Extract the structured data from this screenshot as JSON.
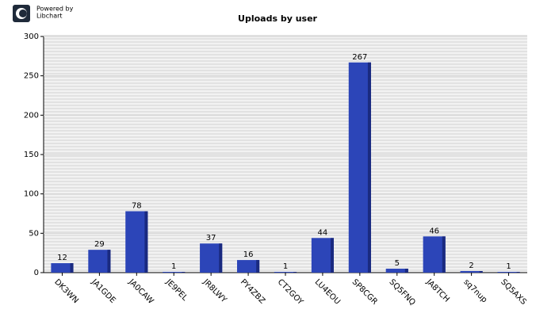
{
  "chart_data": {
    "type": "bar",
    "title": "Uploads by user",
    "credit": [
      "Powered by",
      "Libchart"
    ],
    "categories": [
      "DK3WN",
      "JA1GDE",
      "JA0CAW",
      "JE9PEL",
      "JR8LWY",
      "PY4ZBZ",
      "CT2GOY",
      "LU4EOU",
      "SP8CGR",
      "SQ5FNQ",
      "JA8TCH",
      "sq7nup",
      "SQ5AXS"
    ],
    "values": [
      12,
      29,
      78,
      1,
      37,
      16,
      1,
      44,
      267,
      5,
      46,
      2,
      1
    ],
    "color": "#2c45b8",
    "ylim": [
      0,
      300
    ],
    "yticks": [
      0,
      50,
      100,
      150,
      200,
      250,
      300
    ],
    "grid": true
  }
}
